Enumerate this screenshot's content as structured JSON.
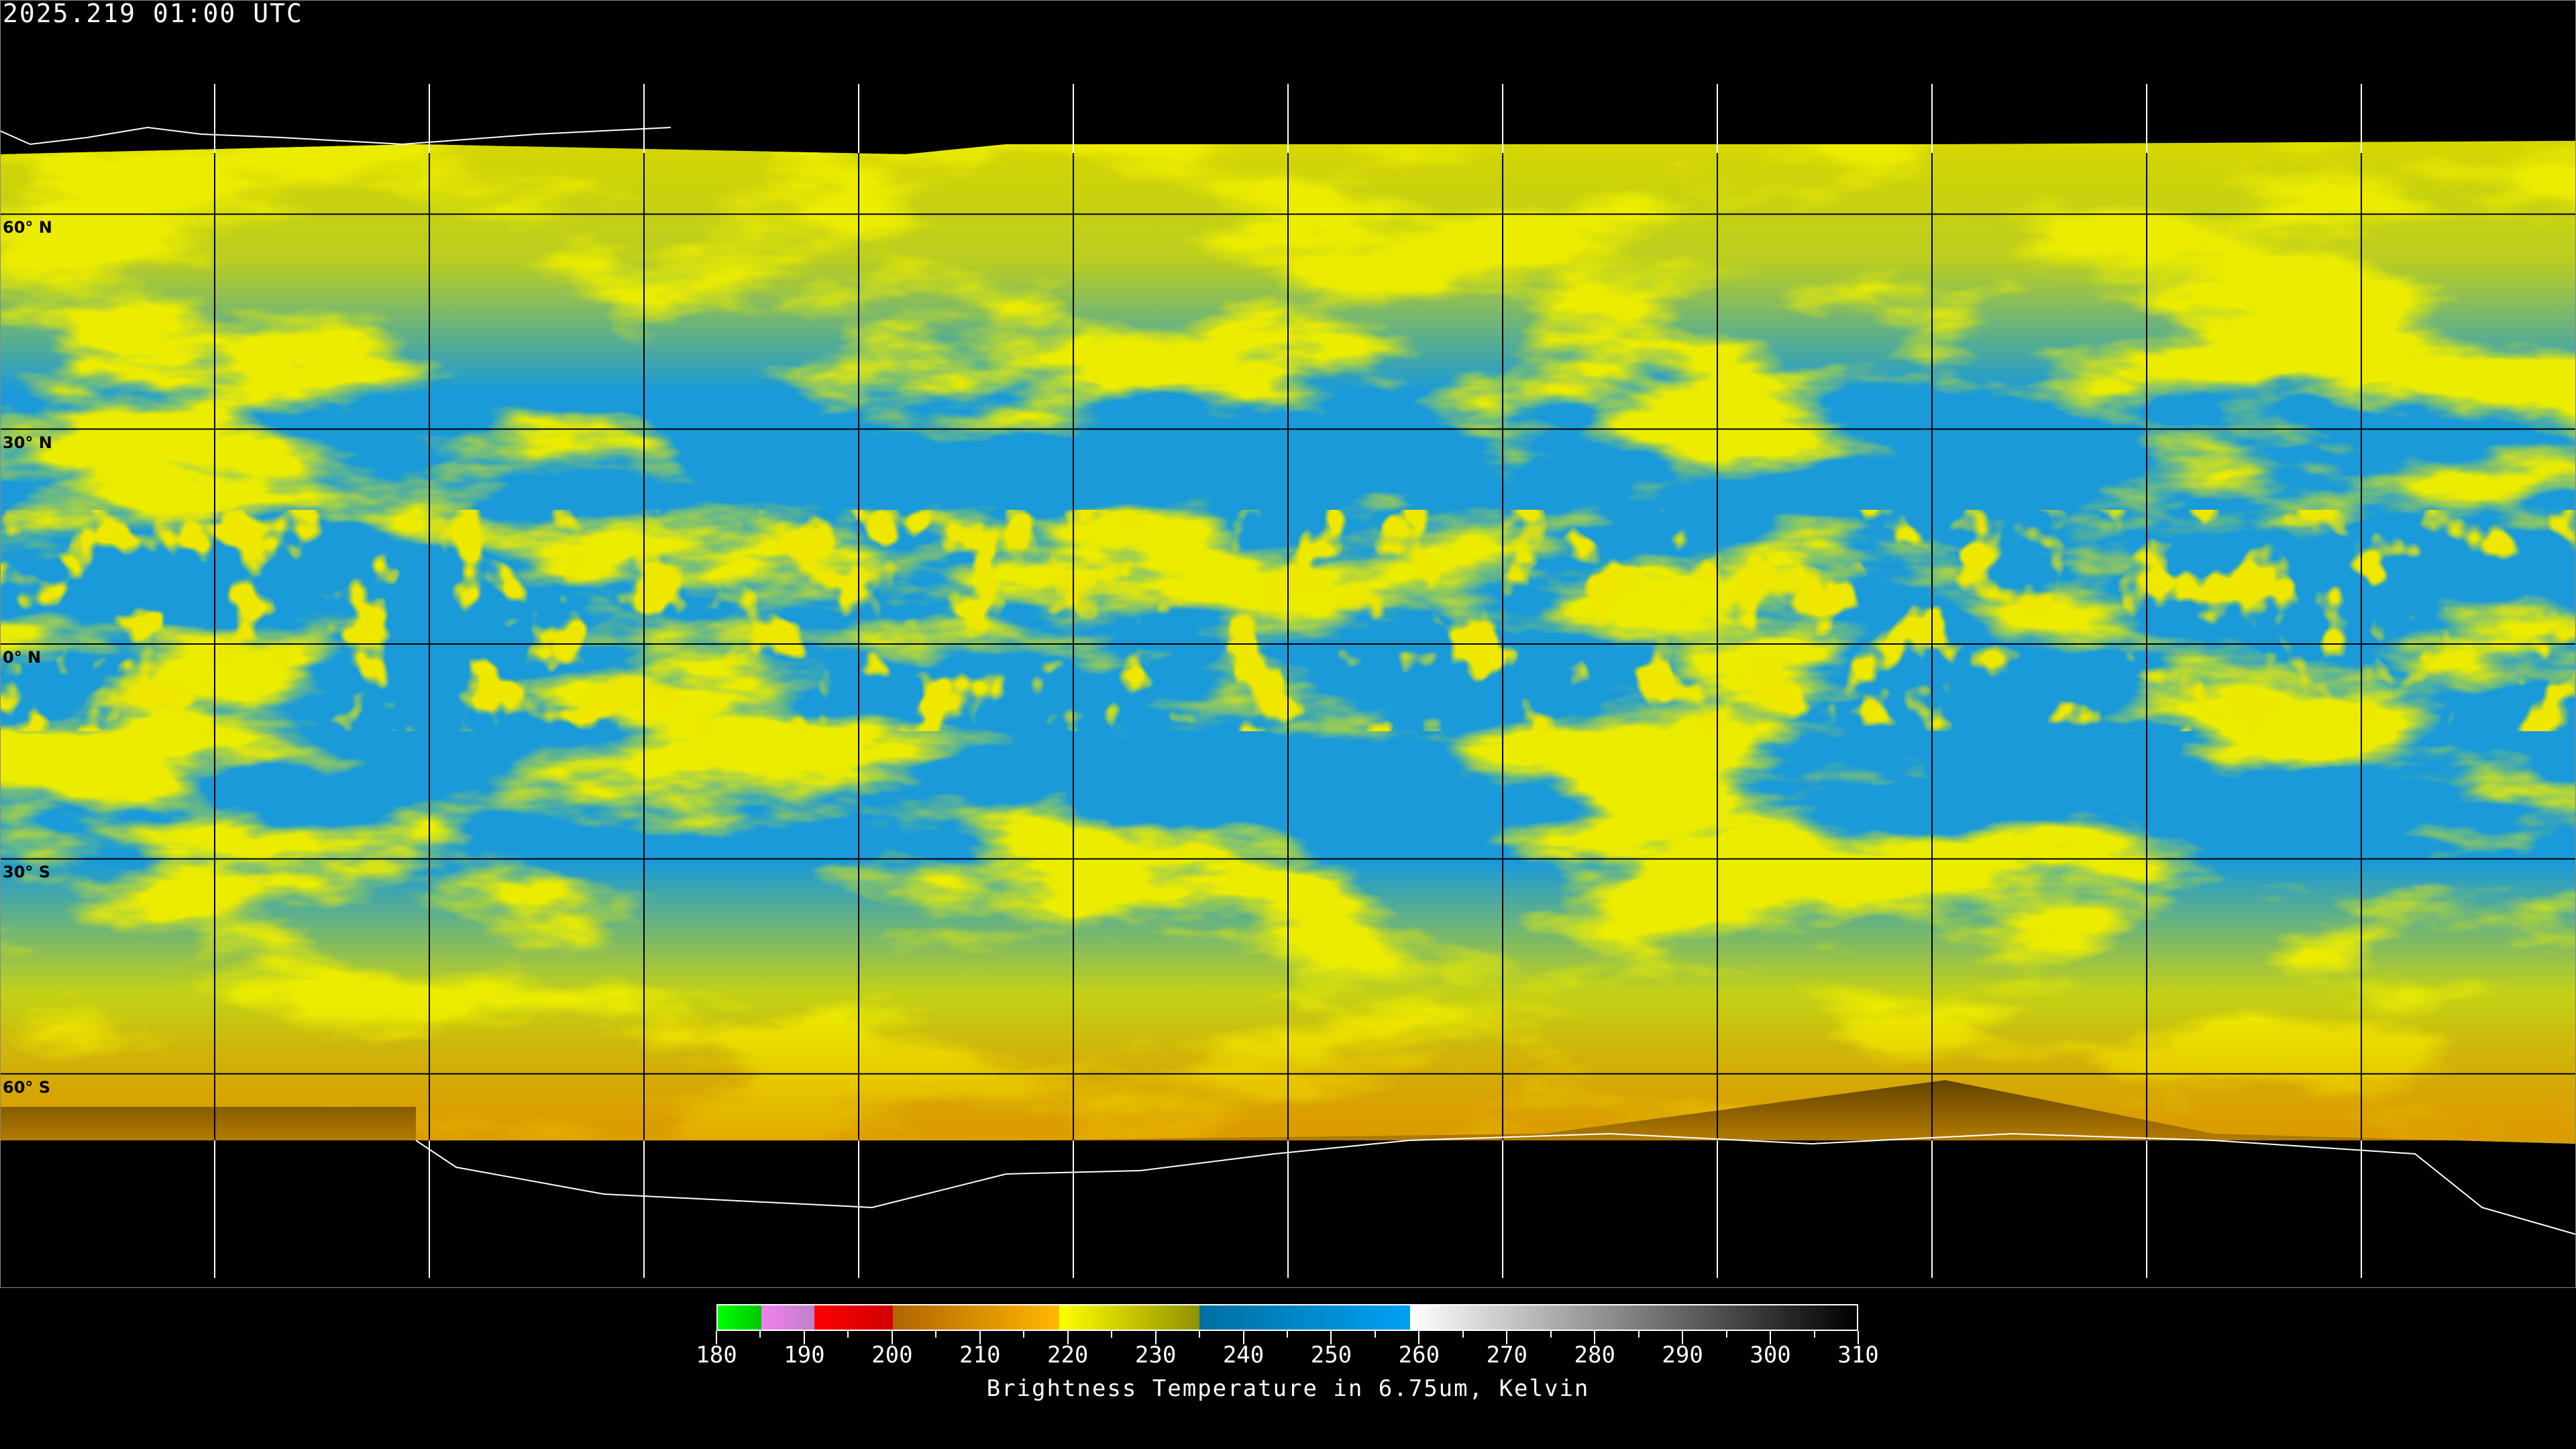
{
  "header": {
    "timestamp": "2025.219 01:00 UTC"
  },
  "map": {
    "projection": "equirectangular",
    "lat_labels": [
      "60° N",
      "30° N",
      "0° N",
      "30° S",
      "60° S"
    ],
    "lat_values": [
      60,
      30,
      0,
      -30,
      -60
    ],
    "lon_grid_spacing_deg": 30,
    "colors": {
      "dry_blue": "#1a9ad8",
      "moist_yellow": "#d6d600",
      "cold_orange": "#e09a00",
      "coastline_land": "#000000",
      "coastline_polar": "#ffffff"
    }
  },
  "colorbar": {
    "title": "Brightness Temperature in 6.75um, Kelvin",
    "min": 180,
    "max": 310,
    "tick_labels": [
      "180",
      "190",
      "200",
      "210",
      "220",
      "230",
      "240",
      "250",
      "260",
      "270",
      "280",
      "290",
      "300",
      "310"
    ],
    "segments": [
      {
        "from": 180,
        "to": 185,
        "start": "#00ff00",
        "end": "#00c800"
      },
      {
        "from": 185,
        "to": 191,
        "start": "#f080f0",
        "end": "#c080c8"
      },
      {
        "from": 191,
        "to": 200,
        "start": "#ff0000",
        "end": "#d00000"
      },
      {
        "from": 200,
        "to": 219,
        "start": "#b06400",
        "end": "#ffb800"
      },
      {
        "from": 219,
        "to": 235,
        "start": "#ffff00",
        "end": "#909000"
      },
      {
        "from": 235,
        "to": 259,
        "start": "#0070a0",
        "end": "#00a0f4"
      },
      {
        "from": 259,
        "to": 310,
        "start": "#ffffff",
        "end": "#000000"
      }
    ]
  }
}
